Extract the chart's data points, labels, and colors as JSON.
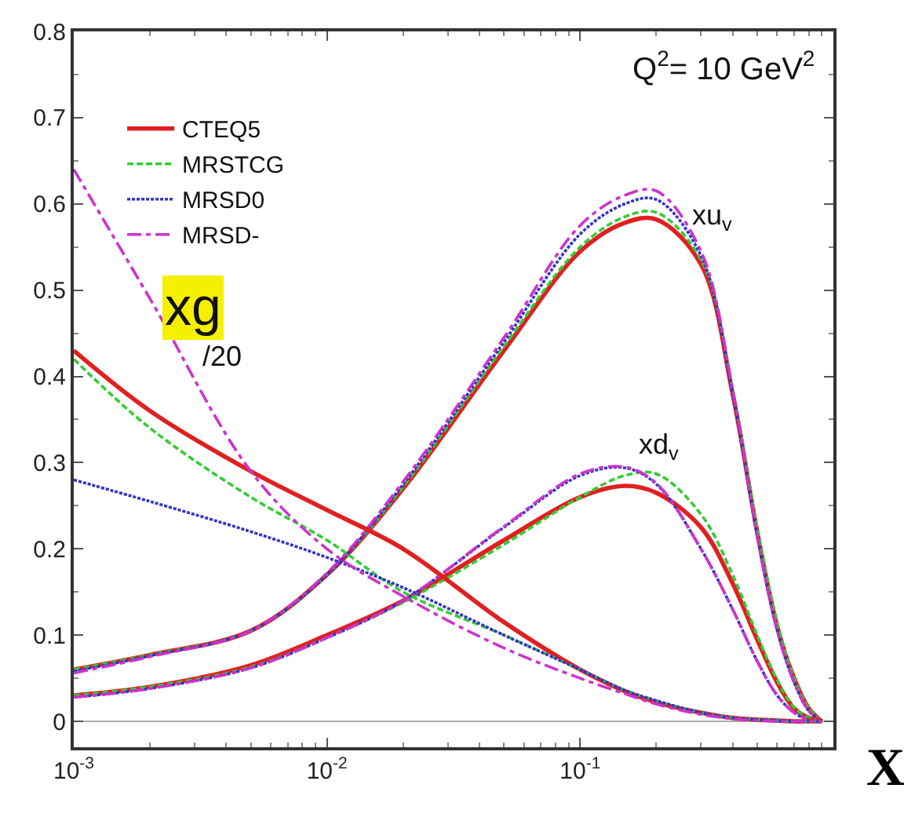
{
  "chart_data": {
    "type": "line",
    "xlabel": "X",
    "log": "x",
    "xlim": [
      0.001,
      1.0
    ],
    "ylim": [
      -0.03,
      0.8
    ],
    "xticks": [
      {
        "value": 0.001,
        "label": "10$^{-3}$"
      },
      {
        "value": 0.01,
        "label": "10$^{-2}$"
      },
      {
        "value": 0.1,
        "label": "10$^{-1}$"
      }
    ],
    "yticks": [
      0,
      0.1,
      0.2,
      0.3,
      0.4,
      0.5,
      0.6,
      0.7,
      0.8
    ],
    "grid": false,
    "legend": "top left",
    "marker": "none",
    "ref_lines": [
      {
        "axis": "y",
        "value": 0,
        "color": "#aaaaaa"
      }
    ],
    "annotations": [
      "Q$^{2}$= 10 GeV$^{2}$",
      {
        "text": "xu$_{v}$",
        "x": 0.27,
        "y": 0.585
      },
      "xd$_{v}$",
      "xg",
      "/20"
    ],
    "x": [
      0.001,
      0.002,
      0.005,
      0.01,
      0.02,
      0.05,
      0.1,
      0.15,
      0.2,
      0.3,
      0.4,
      0.5,
      0.6,
      0.7,
      0.8,
      0.9
    ],
    "series": [
      {
        "name": "CTEQ5",
        "color": "#e02020",
        "line_style": "solid",
        "values": [
          0.06,
          0.077,
          0.105,
          0.17,
          0.27,
          0.43,
          0.545,
          0.578,
          0.582,
          0.53,
          0.38,
          0.22,
          0.11,
          0.05,
          0.015,
          0.0
        ]
      },
      {
        "name": "MRSTCG",
        "color": "#33cc33",
        "line_style": "dashed",
        "values": [
          0.06,
          0.077,
          0.105,
          0.17,
          0.272,
          0.435,
          0.55,
          0.585,
          0.59,
          0.535,
          0.385,
          0.225,
          0.115,
          0.05,
          0.015,
          0.0
        ]
      },
      {
        "name": "MRSD0",
        "color": "#3333cc",
        "line_style": "dotted",
        "values": [
          0.058,
          0.076,
          0.105,
          0.17,
          0.275,
          0.44,
          0.565,
          0.6,
          0.605,
          0.54,
          0.38,
          0.215,
          0.105,
          0.045,
          0.012,
          0.0
        ]
      },
      {
        "name": "MRSD-",
        "color": "#cc33cc",
        "line_style": "dashdot",
        "values": [
          0.056,
          0.075,
          0.105,
          0.172,
          0.278,
          0.445,
          0.575,
          0.61,
          0.615,
          0.545,
          0.385,
          0.215,
          0.105,
          0.045,
          0.012,
          0.0
        ]
      },
      {
        "color": "#e02020",
        "line_style": "solid",
        "values": [
          0.03,
          0.04,
          0.065,
          0.1,
          0.14,
          0.21,
          0.26,
          0.273,
          0.265,
          0.225,
          0.16,
          0.095,
          0.045,
          0.015,
          0.004,
          0.0
        ]
      },
      {
        "color": "#33cc33",
        "line_style": "dashed",
        "values": [
          0.03,
          0.04,
          0.063,
          0.097,
          0.138,
          0.205,
          0.26,
          0.285,
          0.287,
          0.24,
          0.17,
          0.1,
          0.048,
          0.016,
          0.004,
          0.0
        ]
      },
      {
        "color": "#3333cc",
        "line_style": "dotted",
        "values": [
          0.028,
          0.038,
          0.062,
          0.097,
          0.14,
          0.225,
          0.285,
          0.294,
          0.275,
          0.2,
          0.13,
          0.07,
          0.03,
          0.01,
          0.002,
          0.0
        ]
      },
      {
        "color": "#cc33cc",
        "line_style": "dashdot",
        "values": [
          0.028,
          0.038,
          0.062,
          0.097,
          0.14,
          0.226,
          0.287,
          0.295,
          0.276,
          0.2,
          0.13,
          0.07,
          0.03,
          0.01,
          0.002,
          0.0
        ]
      },
      {
        "color": "#e02020",
        "line_style": "solid",
        "values": [
          0.43,
          0.36,
          0.29,
          0.245,
          0.2,
          0.115,
          0.06,
          0.035,
          0.022,
          0.01,
          0.004,
          0.002,
          0.001,
          0.0,
          0.0,
          0.0
        ]
      },
      {
        "color": "#33cc33",
        "line_style": "dashed",
        "values": [
          0.42,
          0.34,
          0.26,
          0.21,
          0.15,
          0.1,
          0.06,
          0.036,
          0.024,
          0.01,
          0.004,
          0.002,
          0.001,
          0.0,
          0.0,
          0.0
        ]
      },
      {
        "color": "#3333cc",
        "line_style": "dotted",
        "values": [
          0.28,
          0.255,
          0.22,
          0.19,
          0.155,
          0.1,
          0.06,
          0.036,
          0.024,
          0.01,
          0.004,
          0.002,
          0.001,
          0.0,
          0.0,
          0.0
        ]
      },
      {
        "color": "#cc33cc",
        "line_style": "dashdot",
        "values": [
          0.64,
          0.49,
          0.29,
          0.2,
          0.145,
          0.085,
          0.05,
          0.032,
          0.02,
          0.008,
          0.003,
          0.001,
          0.0,
          0.0,
          0.0,
          0.0
        ]
      }
    ]
  }
}
